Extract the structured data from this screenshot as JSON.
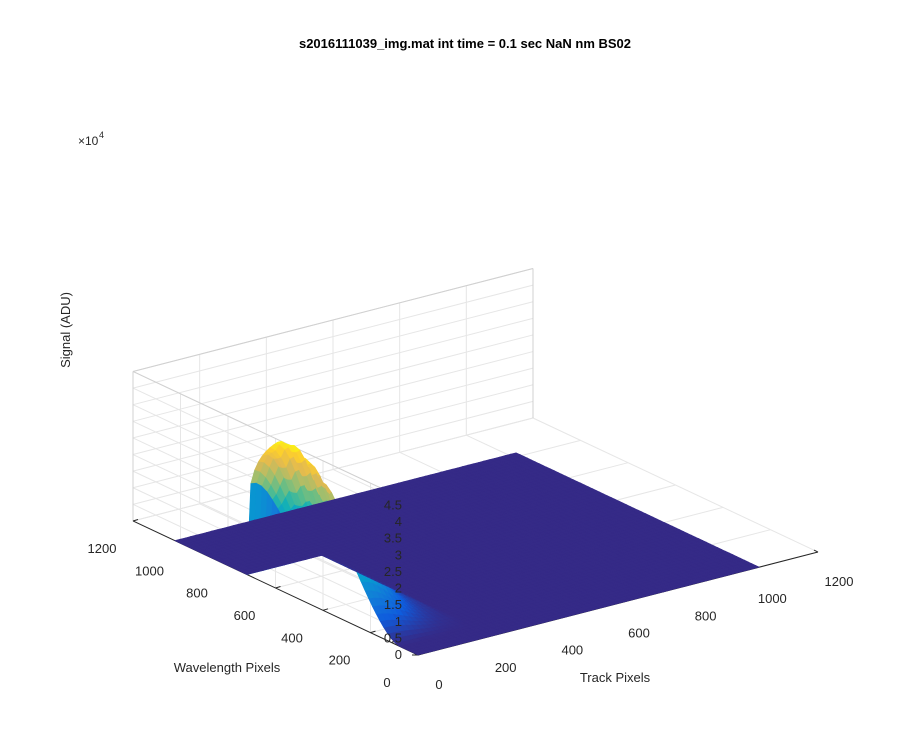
{
  "chart_data": {
    "type": "surface",
    "title": "s2016111039_img.mat int time = 0.1 sec  NaN nm BS02",
    "xlabel": "Track Pixels",
    "ylabel": "Wavelength Pixels",
    "zlabel": "Signal (ADU)",
    "xlim": [
      0,
      1200
    ],
    "ylim": [
      0,
      1200
    ],
    "zlim": [
      0,
      45000
    ],
    "x_ticks": [
      "0",
      "200",
      "400",
      "600",
      "800",
      "1000",
      "1200"
    ],
    "y_ticks": [
      "0",
      "200",
      "400",
      "600",
      "800",
      "1000",
      "1200"
    ],
    "z_ticks": [
      "0",
      "0.5",
      "1",
      "1.5",
      "2",
      "2.5",
      "3",
      "3.5",
      "4",
      "4.5"
    ],
    "z_exponent": "×10",
    "z_exponent_power": "4",
    "x_extent": [
      0,
      1024
    ],
    "y_extent": [
      0,
      1024
    ],
    "peak_region": {
      "track_pixels": [
        0,
        220
      ],
      "wavelength_pixels": [
        80,
        720
      ],
      "peak_signal": 45000,
      "peak_wavelength_pixel": 580
    },
    "colormap": "parula",
    "grid": true
  },
  "colors": {
    "axis": "#262626",
    "grid": "#e6e6e6",
    "floor": "#352a87"
  }
}
